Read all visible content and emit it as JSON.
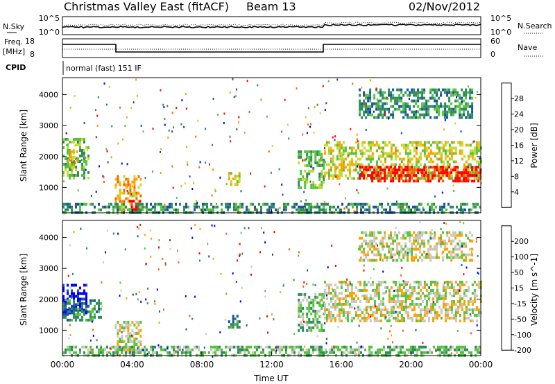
{
  "header": {
    "station": "Christmas Valley East (fitACF)",
    "beam": "Beam 13",
    "date": "02/Nov/2012"
  },
  "strip_nsky": {
    "left_label": "N.Sky",
    "right_label": "N.Search",
    "left_ticks": [
      "10^5",
      "10^0"
    ],
    "right_ticks": [
      "10^5",
      "10^0"
    ]
  },
  "strip_freq": {
    "left_label_1": "Freq.",
    "left_label_2": "[MHz]",
    "right_label": "Nave",
    "left_ticks": [
      "18",
      "8"
    ],
    "right_ticks": [
      "60",
      "0"
    ]
  },
  "cpid": {
    "label": "CPID",
    "text": "normal (fast) 151 IF"
  },
  "chart_data": [
    {
      "type": "heatmap",
      "name": "power",
      "ylabel": "Slant Range [km]",
      "ylim": [
        180,
        4550
      ],
      "yticks": [
        "1000",
        "2000",
        "3000",
        "4000"
      ],
      "colorbar_label": "Power [dB]",
      "colorbar_ticks": [
        "4",
        "8",
        "12",
        "16",
        "20",
        "24",
        "28"
      ],
      "colorbar_colors": [
        "#0000ff",
        "#1f4fa8",
        "#2e8c5c",
        "#55c43c",
        "#c8d82e",
        "#ffa000",
        "#ff6000",
        "#ff0000"
      ],
      "blobs": [
        {
          "t0": 0.0,
          "t1": 1.5,
          "r0": 1300,
          "r1": 2600,
          "level": 3
        },
        {
          "t0": 0.3,
          "t1": 0.8,
          "r0": 1600,
          "r1": 2200,
          "level": 5
        },
        {
          "t0": 3.0,
          "t1": 4.5,
          "r0": 300,
          "r1": 1400,
          "level": 5
        },
        {
          "t0": 3.8,
          "t1": 4.4,
          "r0": 200,
          "r1": 600,
          "level": 7
        },
        {
          "t0": 9.5,
          "t1": 10.2,
          "r0": 1100,
          "r1": 1500,
          "level": 4
        },
        {
          "t0": 13.5,
          "t1": 15.0,
          "r0": 1000,
          "r1": 2200,
          "level": 3
        },
        {
          "t0": 15.0,
          "t1": 24.0,
          "r0": 1300,
          "r1": 2500,
          "level": 4
        },
        {
          "t0": 17.0,
          "t1": 24.0,
          "r0": 1200,
          "r1": 1700,
          "level": 7
        },
        {
          "t0": 17.0,
          "t1": 23.5,
          "r0": 3300,
          "r1": 4200,
          "level": 2
        },
        {
          "t0": 0.0,
          "t1": 24.0,
          "r0": 200,
          "r1": 500,
          "level": 2
        }
      ]
    },
    {
      "type": "heatmap",
      "name": "velocity",
      "xlabel": "Time UT",
      "ylabel": "Slant Range [km]",
      "xlim": [
        0,
        24
      ],
      "xticks": [
        "00:00",
        "04:00",
        "08:00",
        "12:00",
        "16:00",
        "20:00",
        "00:00"
      ],
      "ylim": [
        180,
        4550
      ],
      "yticks": [
        "1000",
        "2000",
        "3000",
        "4000"
      ],
      "colorbar_label": "Velocity [m s^-1]",
      "colorbar_ticks": [
        "200",
        "100",
        "50",
        "15",
        "-15",
        "-50",
        "-100",
        "-200"
      ],
      "colorbar_colors": [
        "#0000ff",
        "#1f4fa8",
        "#2e8c5c",
        "#55c43c",
        "#c8c8c0",
        "#ffa000",
        "#ff6000",
        "#ff0000"
      ],
      "blobs": [
        {
          "t0": 0.0,
          "t1": 1.4,
          "r0": 1600,
          "r1": 2500,
          "level": 0
        },
        {
          "t0": 0.0,
          "t1": 2.2,
          "r0": 1300,
          "r1": 2000,
          "level": 2
        },
        {
          "t0": 3.0,
          "t1": 4.5,
          "r0": 300,
          "r1": 1300,
          "level": 4
        },
        {
          "t0": 9.5,
          "t1": 10.2,
          "r0": 1100,
          "r1": 1500,
          "level": 2
        },
        {
          "t0": 13.5,
          "t1": 15.0,
          "r0": 1000,
          "r1": 2200,
          "level": 3
        },
        {
          "t0": 15.0,
          "t1": 24.0,
          "r0": 1300,
          "r1": 2600,
          "level": 4
        },
        {
          "t0": 17.0,
          "t1": 23.5,
          "r0": 3300,
          "r1": 4200,
          "level": 4
        },
        {
          "t0": 0.0,
          "t1": 24.0,
          "r0": 200,
          "r1": 500,
          "level": 3
        }
      ]
    }
  ]
}
